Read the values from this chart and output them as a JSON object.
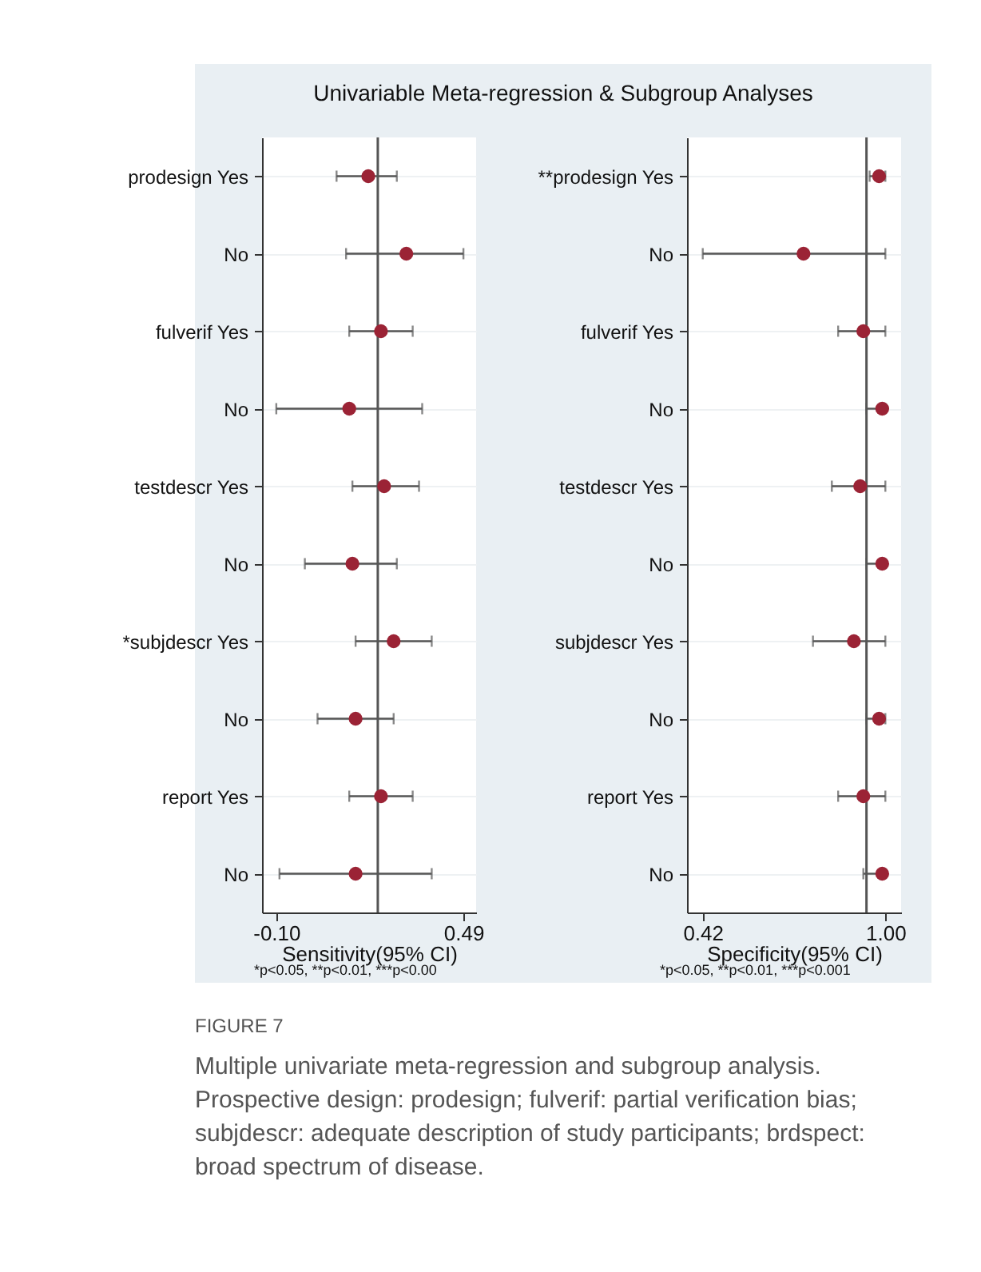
{
  "chart_data": [
    {
      "type": "scatter",
      "orientation": "horizontal",
      "title": "Univariable Meta-regression & Subgroup Analyses",
      "xlabel": "Sensitivity(95% CI)",
      "categories": [
        "prodesign Yes",
        "No",
        "fulverif Yes",
        "No",
        "testdescr Yes",
        "No",
        "*subjdescr Yes",
        "No",
        "report Yes",
        "No"
      ],
      "color": "#9b2335",
      "marker": "circle",
      "values": [
        0.19,
        0.31,
        0.23,
        0.13,
        0.24,
        0.14,
        0.27,
        0.15,
        0.23,
        0.15
      ],
      "errors": [
        [
          0.09,
          0.28
        ],
        [
          0.12,
          0.49
        ],
        [
          0.13,
          0.33
        ],
        [
          -0.1,
          0.36
        ],
        [
          0.14,
          0.35
        ],
        [
          -0.01,
          0.28
        ],
        [
          0.15,
          0.39
        ],
        [
          0.03,
          0.27
        ],
        [
          0.13,
          0.33
        ],
        [
          -0.09,
          0.39
        ]
      ],
      "xlim": [
        -0.145,
        0.53
      ],
      "xticks": [
        {
          "value": -0.1,
          "label": "-0.10"
        },
        0.49
      ],
      "ref_lines": [
        {
          "axis": "x",
          "value": 0.22
        }
      ],
      "grid": "y",
      "annotations": [
        "*p<0.05, **p<0.01, ***p<0.00"
      ]
    },
    {
      "type": "scatter",
      "orientation": "horizontal",
      "xlabel": "Specificity(95% CI)",
      "categories": [
        "**prodesign Yes",
        "No",
        "fulverif Yes",
        "No",
        "testdescr Yes",
        "No",
        "subjdescr Yes",
        "No",
        "report Yes",
        "No"
      ],
      "color": "#9b2335",
      "marker": "circle",
      "values": [
        0.98,
        0.74,
        0.93,
        0.99,
        0.92,
        0.99,
        0.9,
        0.98,
        0.93,
        0.99
      ],
      "errors": [
        [
          0.95,
          1.0
        ],
        [
          0.42,
          1.0
        ],
        [
          0.85,
          1.0
        ],
        [
          0.94,
          1.0
        ],
        [
          0.83,
          1.0
        ],
        [
          0.94,
          1.0
        ],
        [
          0.77,
          1.0
        ],
        [
          0.94,
          1.0
        ],
        [
          0.85,
          1.0
        ],
        [
          0.93,
          1.0
        ]
      ],
      "xlim": [
        0.37,
        1.05
      ],
      "xticks": [
        0.42,
        {
          "value": 1,
          "label": "1.00"
        }
      ],
      "ref_lines": [
        {
          "axis": "x",
          "value": 0.94
        }
      ],
      "grid": "y",
      "annotations": [
        "*p<0.05, **p<0.01, ***p<0.001",
        "FIGURE 7",
        "Multiple univariate meta-regression and subgroup analysis. Prospective design: prodesign; fulverif: partial verification bias; subjdescr: adequate description of study participants; brdspect: broad spectrum of disease."
      ]
    }
  ]
}
